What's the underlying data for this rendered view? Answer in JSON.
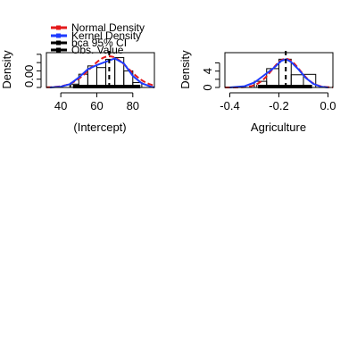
{
  "legend": {
    "entries": [
      {
        "label": "Normal Density",
        "color": "#e41a1c"
      },
      {
        "label": "Kernel Density",
        "color": "#1f3bff"
      },
      {
        "label": "bca 95% CI",
        "color": "#000000"
      },
      {
        "label": "Obs. Value",
        "color": "#000000"
      }
    ]
  },
  "chart_data": [
    {
      "type": "histogram",
      "xlabel": "(Intercept)",
      "ylabel": "Density",
      "xlim": [
        32,
        92
      ],
      "ylim": [
        0,
        0.042
      ],
      "x_ticks": [
        40,
        60,
        80
      ],
      "y_tick_labels": [
        {
          "value": 0,
          "label": "0.00"
        }
      ],
      "y_ticks": [
        0,
        0.01,
        0.02,
        0.03,
        0.04
      ],
      "bins": [
        {
          "x0": 45,
          "x1": 50,
          "density": 0.004
        },
        {
          "x0": 50,
          "x1": 55,
          "density": 0.016
        },
        {
          "x0": 55,
          "x1": 60,
          "density": 0.026
        },
        {
          "x0": 60,
          "x1": 65,
          "density": 0.024
        },
        {
          "x0": 65,
          "x1": 70,
          "density": 0.034
        },
        {
          "x0": 70,
          "x1": 75,
          "density": 0.036
        },
        {
          "x0": 75,
          "x1": 80,
          "density": 0.02
        },
        {
          "x0": 80,
          "x1": 85,
          "density": 0.006
        }
      ],
      "normal_density": {
        "mean": 66.9,
        "sd": 10.6
      },
      "kernel_density": {
        "x": [
          34,
          40,
          45,
          50,
          55,
          60,
          65,
          70,
          75,
          80,
          85,
          90,
          92
        ],
        "y": [
          0.0,
          0.001,
          0.004,
          0.012,
          0.022,
          0.027,
          0.031,
          0.035,
          0.029,
          0.014,
          0.005,
          0.001,
          0.0
        ]
      },
      "ci": [
        46.8,
        84.2
      ],
      "obs_value": 66.9,
      "rug": [
        45.5,
        47,
        49,
        50.5,
        51.5,
        53,
        54.5,
        56,
        57,
        58,
        59,
        60,
        61,
        62.5,
        63.5,
        64.5,
        65.5,
        66.5,
        67.5,
        68.5,
        69.5,
        70.5,
        71.5,
        72.5,
        73.5,
        74.5,
        76,
        77.5,
        79,
        81,
        83.5
      ]
    },
    {
      "type": "histogram",
      "xlabel": "Agriculture",
      "ylabel": "Density",
      "xlim": [
        -0.42,
        0.02
      ],
      "ylim": [
        0,
        8.5
      ],
      "x_ticks": [
        -0.4,
        -0.2,
        0.0
      ],
      "x_tick_labels": [
        "-0.4",
        "-0.2",
        "0.0"
      ],
      "y_ticks": [
        0,
        4
      ],
      "y_tick_labels": [
        {
          "value": 0,
          "label": "0"
        },
        {
          "value": 4,
          "label": "4"
        }
      ],
      "y_minor_ticks": [
        2,
        6
      ],
      "bins": [
        {
          "x0": -0.3,
          "x1": -0.25,
          "density": 1.5
        },
        {
          "x0": -0.25,
          "x1": -0.2,
          "density": 4.6
        },
        {
          "x0": -0.2,
          "x1": -0.15,
          "density": 6.9
        },
        {
          "x0": -0.15,
          "x1": -0.1,
          "density": 3.1
        },
        {
          "x0": -0.1,
          "x1": -0.05,
          "density": 3.2
        }
      ],
      "normal_density": {
        "mean": -0.172,
        "sd": 0.057
      },
      "kernel_density": {
        "x": [
          -0.4,
          -0.34,
          -0.3,
          -0.26,
          -0.22,
          -0.19,
          -0.17,
          -0.15,
          -0.12,
          -0.09,
          -0.06,
          -0.03,
          0.0
        ],
        "y": [
          0.0,
          0.3,
          1.2,
          3.0,
          4.8,
          6.5,
          6.9,
          6.2,
          4.4,
          2.3,
          0.9,
          0.2,
          0.0
        ]
      },
      "ci": [
        -0.285,
        -0.065
      ],
      "obs_value": -0.172,
      "rug": [
        -0.29,
        -0.28,
        -0.265,
        -0.255,
        -0.245,
        -0.235,
        -0.228,
        -0.22,
        -0.212,
        -0.205,
        -0.198,
        -0.19,
        -0.184,
        -0.178,
        -0.172,
        -0.166,
        -0.16,
        -0.154,
        -0.148,
        -0.14,
        -0.132,
        -0.124,
        -0.115,
        -0.105,
        -0.095,
        -0.085,
        -0.075,
        -0.068
      ]
    }
  ]
}
